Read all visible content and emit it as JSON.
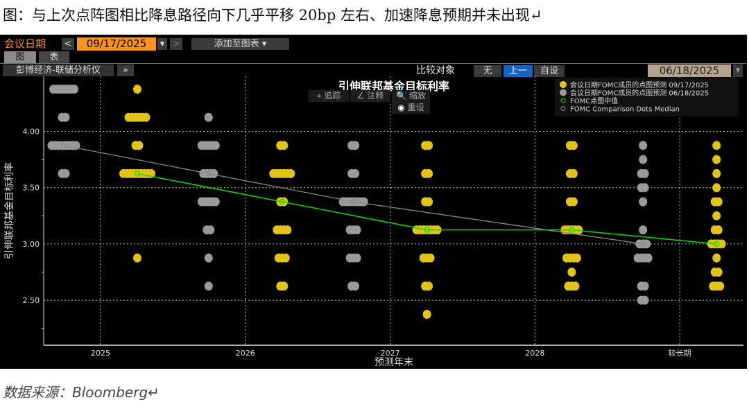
{
  "heading": "图：与上次点阵图相比降息路径向下几乎平移 20bp 左右、加速降息预期并未出现↵",
  "source": "数据来源：Bloomberg↵",
  "toolbar": {
    "meeting_label": "会议日期",
    "prev": "<",
    "date": "09/17/2025",
    "dropdown": "▾",
    "next": ">",
    "add_to_chart": "添加至图表 ▾",
    "tab_chart": "图",
    "tab_table": "表",
    "analyzer": "彭博经济-联储分析仪",
    "more": "»",
    "compare_label": "比较对象",
    "compare_none": "无",
    "compare_prev": "上一",
    "compare_custom": "自设",
    "compare_date": "06/18/2025",
    "tools": {
      "track": "⌖ 追踪",
      "annotate": "∠ 注释",
      "zoom": "🔍 缩放",
      "reset": "重设"
    }
  },
  "colors": {
    "current": "#e3c416",
    "previous": "#9a9a9a",
    "median_current": "#00e000",
    "median_previous": "#8a8a8a",
    "active_button": "#1565c0",
    "date_orange": "#f7931e"
  },
  "chart_data": {
    "type": "scatter",
    "title": "引伸联邦基金目标利率",
    "xlabel": "预测年末",
    "ylabel": "引伸联邦基金目标利率",
    "categories": [
      "2025",
      "2026",
      "2027",
      "2028",
      "较长期"
    ],
    "ylim": [
      2.1,
      4.49
    ],
    "yticks": [
      "4.00",
      "3.50",
      "3.00",
      "2.50"
    ],
    "grid": true,
    "legend_position": "top-right",
    "legend": [
      "会议日期FOMC成员的点图预测 09/17/2025",
      "会议日期FOMC成员的点图预测 06/18/2025",
      "FOMC点图中值",
      "FOMC Comparison Dots Median"
    ],
    "series": [
      {
        "name": "会议日期FOMC成员的点图预测 09/17/2025",
        "dots": [
          {
            "4.375": 1,
            "4.125": 6,
            "3.875": 2,
            "3.625": 9,
            "2.875": 1
          },
          {
            "3.875": 2,
            "3.625": 6,
            "3.375": 2,
            "3.125": 4,
            "2.875": 3,
            "2.625": 2
          },
          {
            "3.875": 2,
            "3.625": 2,
            "3.375": 2,
            "3.125": 7,
            "2.875": 3,
            "2.625": 2,
            "2.375": 1
          },
          {
            "3.875": 2,
            "3.625": 2,
            "3.375": 2,
            "3.125": 5,
            "2.875": 4,
            "2.75": 1,
            "2.625": 3
          },
          {
            "3.875": 1,
            "3.75": 1,
            "3.625": 1,
            "3.5": 1,
            "3.375": 2,
            "3.25": 1,
            "3.125": 2,
            "3.0": 4,
            "2.875": 1,
            "2.75": 2,
            "2.625": 3
          }
        ]
      },
      {
        "name": "会议日期FOMC成员的点图预测 06/18/2025",
        "dots": [
          {
            "4.375": 7,
            "4.125": 2,
            "3.875": 8,
            "3.625": 2
          },
          {
            "4.125": 1,
            "3.875": 5,
            "3.625": 4,
            "3.375": 5,
            "3.125": 2,
            "2.875": 1,
            "2.625": 1
          },
          {
            "3.875": 2,
            "3.625": 2,
            "3.375": 7,
            "3.125": 3,
            "2.875": 3,
            "2.625": 2
          },
          null,
          {
            "3.875": 1,
            "3.75": 1,
            "3.625": 2,
            "3.5": 2,
            "3.375": 1,
            "3.125": 1,
            "3.0": 3,
            "2.875": 4,
            "2.625": 2,
            "2.5": 2
          }
        ]
      },
      {
        "name": "FOMC点图中值",
        "values": [
          3.625,
          3.375,
          3.125,
          3.125,
          3.0
        ]
      },
      {
        "name": "FOMC Comparison Dots Median",
        "values": [
          3.875,
          3.625,
          3.375,
          null,
          3.0
        ]
      }
    ]
  }
}
